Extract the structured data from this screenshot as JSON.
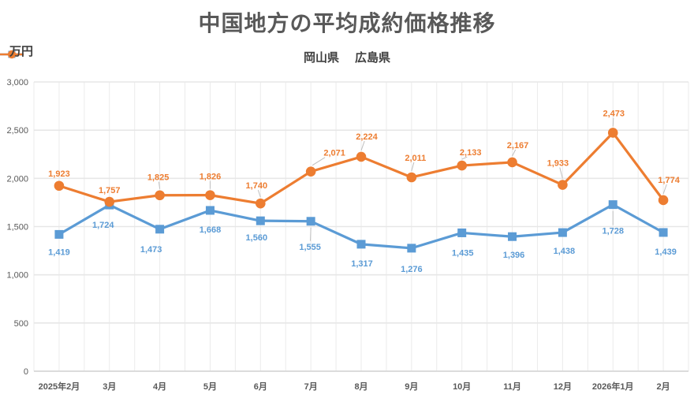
{
  "chart_data": {
    "type": "line",
    "title": "中国地方の平均成約価格推移",
    "y_axis_unit_label": "万円",
    "categories": [
      "2025年2月",
      "3月",
      "4月",
      "5月",
      "6月",
      "7月",
      "8月",
      "9月",
      "10月",
      "11月",
      "12月",
      "2026年1月",
      "2月"
    ],
    "series": [
      {
        "name": "岡山県",
        "color": "#5B9BD5",
        "marker": "square",
        "values": [
          1419,
          1724,
          1473,
          1668,
          1560,
          1555,
          1317,
          1276,
          1435,
          1396,
          1438,
          1728,
          1439
        ],
        "value_labels": [
          "1,419",
          "1,724",
          "1,473",
          "1,668",
          "1,560",
          "1,555",
          "1,317",
          "1,276",
          "1,435",
          "1,396",
          "1,438",
          "1,728",
          "1,439"
        ]
      },
      {
        "name": "広島県",
        "color": "#ED7D31",
        "marker": "circle",
        "values": [
          1923,
          1757,
          1825,
          1826,
          1740,
          2071,
          2224,
          2011,
          2133,
          2167,
          1933,
          2473,
          1774
        ],
        "value_labels": [
          "1,923",
          "1,757",
          "1,825",
          "1,826",
          "1,740",
          "2,071",
          "2,224",
          "2,011",
          "2,133",
          "2,167",
          "1,933",
          "2,473",
          "1,774"
        ]
      }
    ],
    "ylim": [
      0,
      3000
    ],
    "y_tick_interval": 500,
    "y_ticks": [
      "0",
      "500",
      "1,000",
      "1,500",
      "2,000",
      "2,500",
      "3,000"
    ],
    "grid": "both",
    "legend_position": "top",
    "colors": {
      "title_text": "#595959",
      "axis_text": "#595959",
      "gridline": "#E7E7E7",
      "axis_line": "#CFCFCF",
      "leader_line": "#BFBFBF"
    }
  }
}
